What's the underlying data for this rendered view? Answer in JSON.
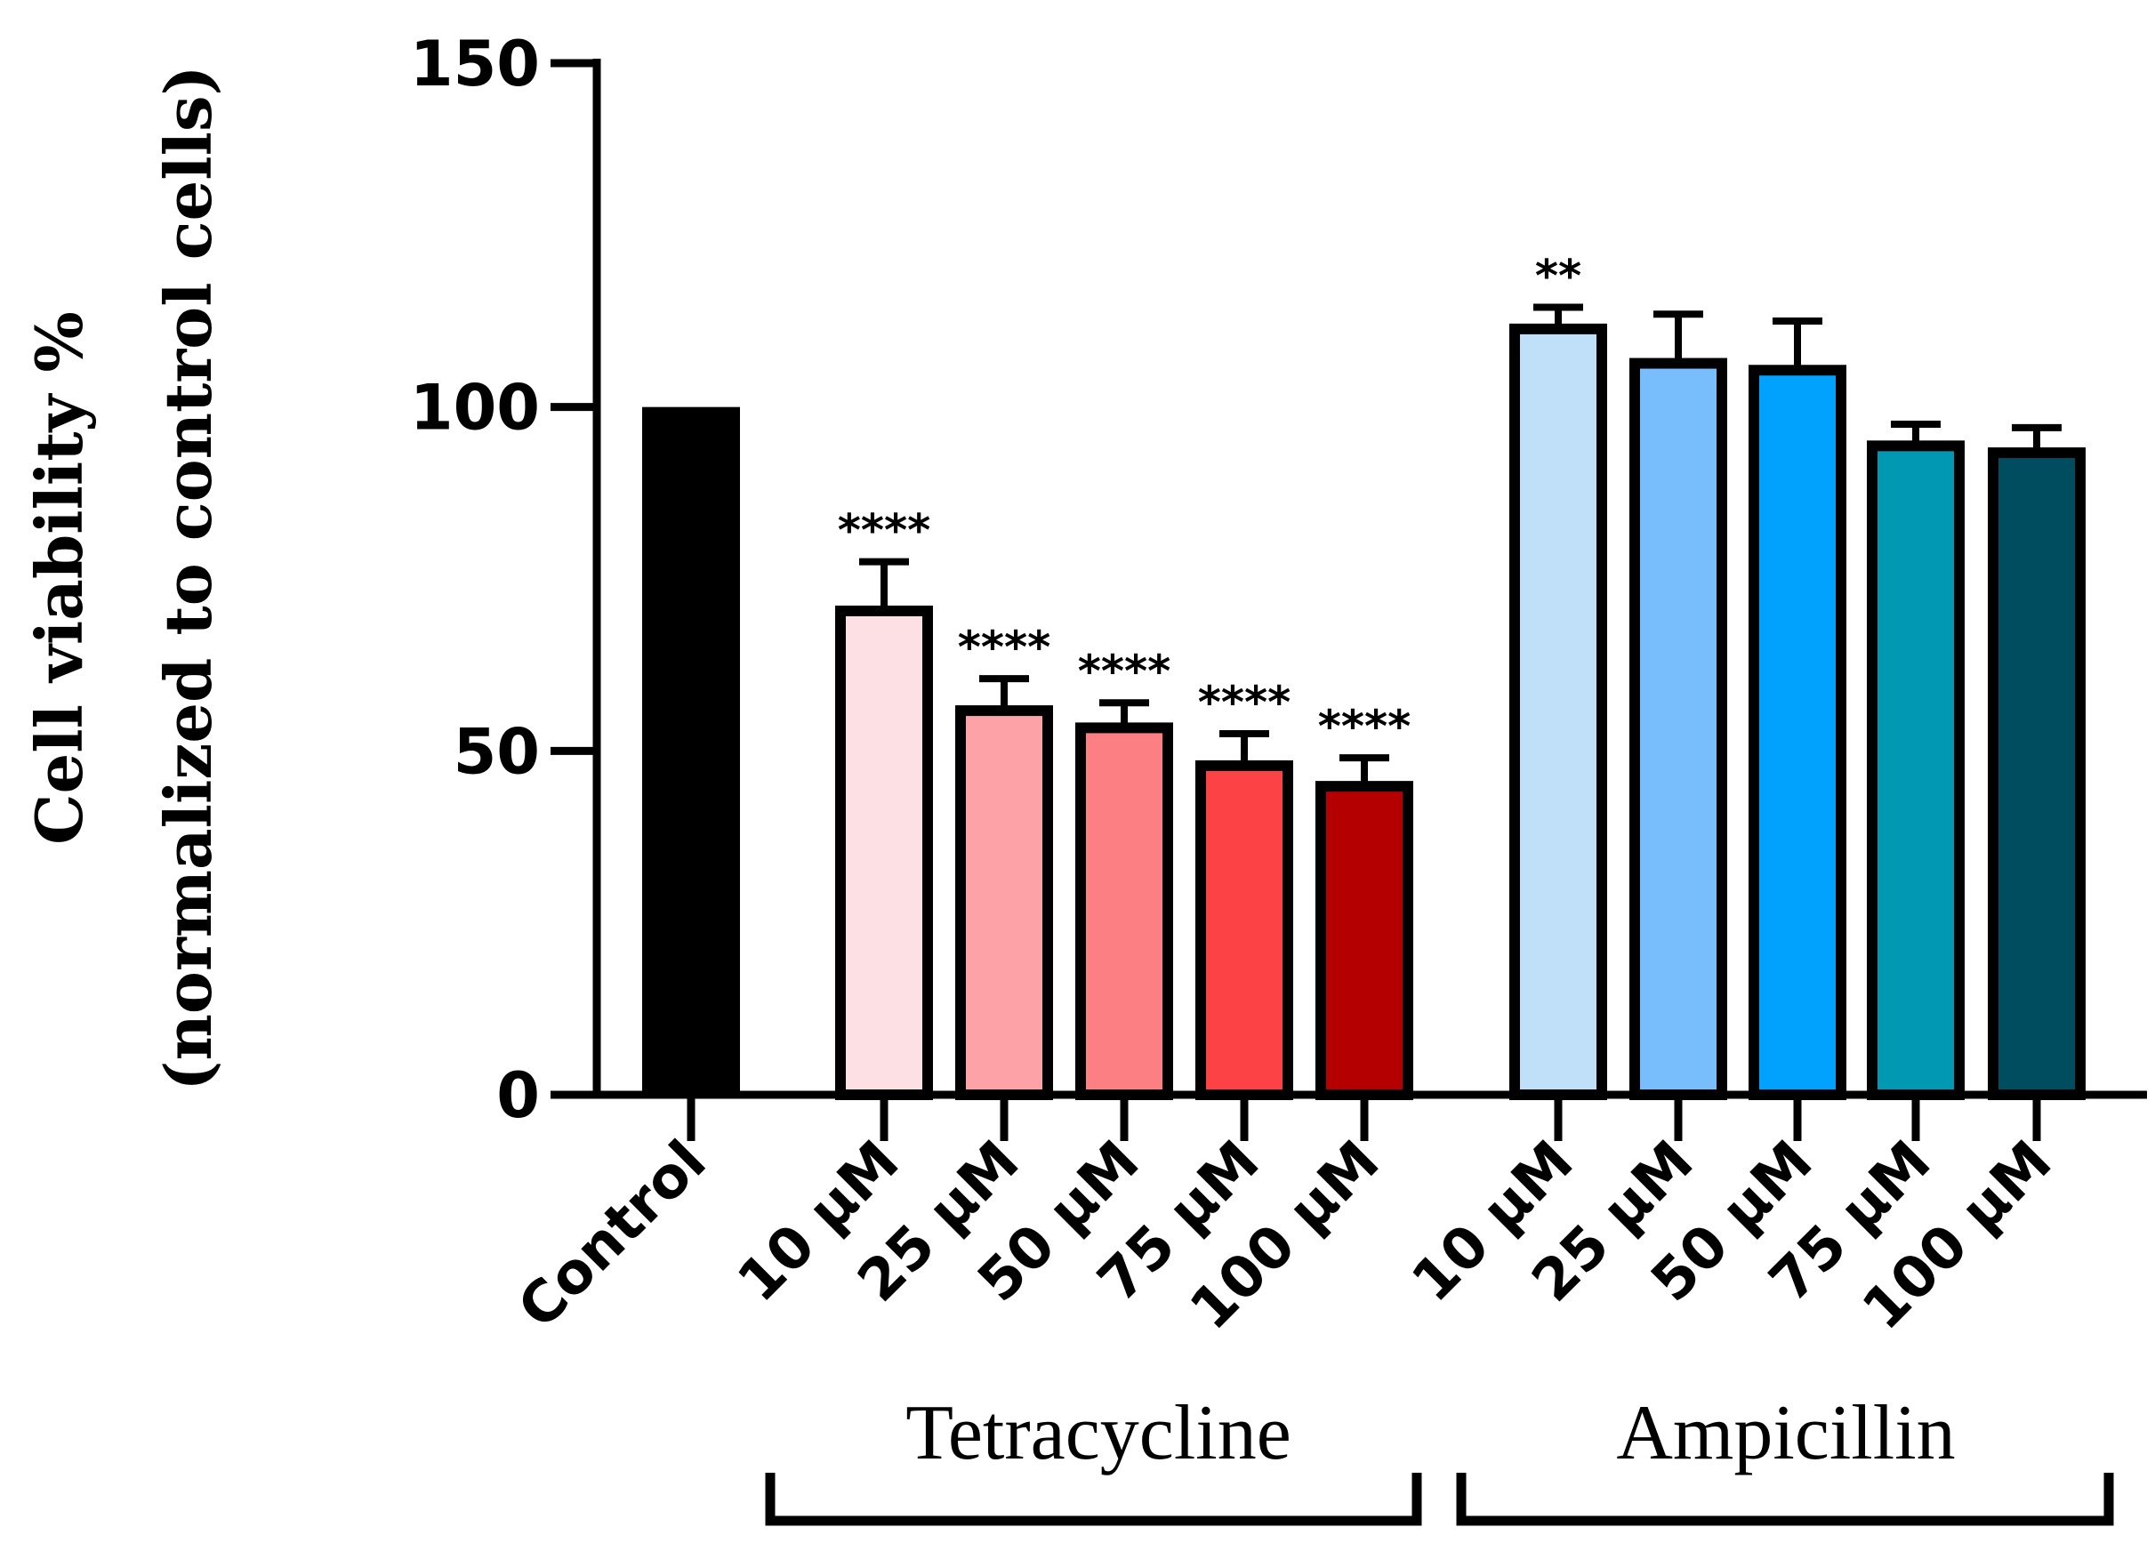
{
  "chart_data": {
    "type": "bar",
    "ylabel_line1": "Cell viability %",
    "ylabel_line2": "(normalized to control cells)",
    "ylim": [
      0,
      150
    ],
    "yticks": [
      "0",
      "50",
      "100",
      "150"
    ],
    "categories": [
      "Control",
      "10 μM",
      "25 μM",
      "50 μM",
      "75 μM",
      "100 μM",
      "10 μM",
      "25 μM",
      "50 μM",
      "75 μM",
      "100 μM"
    ],
    "values": [
      100,
      71,
      56.5,
      54,
      48.5,
      45.5,
      112,
      107,
      106,
      95,
      94
    ],
    "errors": [
      0,
      6.5,
      4,
      3,
      4,
      3.5,
      2.5,
      6.5,
      6.5,
      2.5,
      3
    ],
    "significance": [
      "",
      "****",
      "****",
      "****",
      "****",
      "****",
      "**",
      "",
      "",
      "",
      ""
    ],
    "colors": [
      "#000000",
      "#fde0e3",
      "#fda3a8",
      "#fc8083",
      "#fc4244",
      "#b50000",
      "#c0e0fa",
      "#78befd",
      "#00a2fd",
      "#0098b3",
      "#004d60"
    ],
    "groups": [
      {
        "label": "Tetracycline",
        "from": 1,
        "to": 5
      },
      {
        "label": "Ampicillin",
        "from": 6,
        "to": 10
      }
    ]
  }
}
